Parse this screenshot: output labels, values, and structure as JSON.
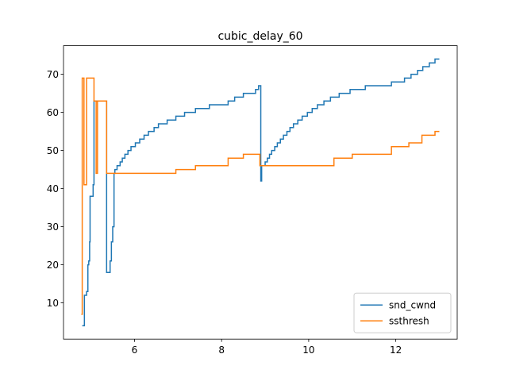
{
  "chart_data": {
    "type": "line",
    "title": "cubic_delay_60",
    "step": "post",
    "xlim": [
      4.37,
      13.41
    ],
    "ylim": [
      0.5,
      77.5
    ],
    "xticks": [
      6,
      8,
      10,
      12
    ],
    "yticks": [
      10,
      20,
      30,
      40,
      50,
      60,
      70
    ],
    "legend": "lower right",
    "grid": false,
    "series": [
      {
        "name": "snd_cwnd",
        "color": "#1f77b4",
        "x": [
          4.8,
          4.85,
          4.9,
          4.93,
          4.95,
          4.97,
          4.98,
          5.05,
          5.07,
          5.36,
          5.44,
          5.47,
          5.5,
          5.53,
          5.55,
          5.6,
          5.67,
          5.72,
          5.78,
          5.85,
          5.92,
          6.02,
          6.12,
          6.22,
          6.32,
          6.45,
          6.55,
          6.75,
          6.95,
          7.15,
          7.4,
          7.72,
          8.15,
          8.3,
          8.5,
          8.78,
          8.85,
          8.9,
          8.92,
          9.0,
          9.05,
          9.1,
          9.15,
          9.22,
          9.28,
          9.35,
          9.42,
          9.5,
          9.57,
          9.65,
          9.75,
          9.85,
          9.97,
          10.08,
          10.2,
          10.35,
          10.5,
          10.7,
          10.95,
          11.3,
          11.9,
          12.2,
          12.35,
          12.5,
          12.62,
          12.77,
          12.9,
          13.0
        ],
        "values": [
          4,
          12,
          13,
          20,
          21,
          26,
          38,
          41,
          63,
          18,
          21,
          26,
          30,
          44,
          45,
          46,
          47,
          48,
          49,
          50,
          51,
          52,
          53,
          54,
          55,
          56,
          57,
          58,
          59,
          60,
          61,
          62,
          63,
          64,
          65,
          66,
          67,
          42,
          46,
          47,
          48,
          49,
          50,
          51,
          52,
          53,
          54,
          55,
          56,
          57,
          58,
          59,
          60,
          61,
          62,
          63,
          64,
          65,
          66,
          67,
          68,
          69,
          70,
          71,
          72,
          73,
          74,
          74
        ]
      },
      {
        "name": "ssthresh",
        "color": "#ff7f0e",
        "x": [
          4.78,
          4.8,
          4.84,
          4.9,
          5.07,
          5.12,
          5.15,
          5.36,
          6.95,
          7.4,
          8.15,
          8.5,
          8.88,
          10.58,
          11.0,
          11.9,
          12.3,
          12.6,
          12.9,
          13.0
        ],
        "values": [
          7,
          69,
          41,
          69,
          63,
          44,
          63,
          44,
          45,
          46,
          48,
          49,
          46,
          48,
          49,
          51,
          52,
          54,
          55,
          55
        ]
      }
    ]
  }
}
